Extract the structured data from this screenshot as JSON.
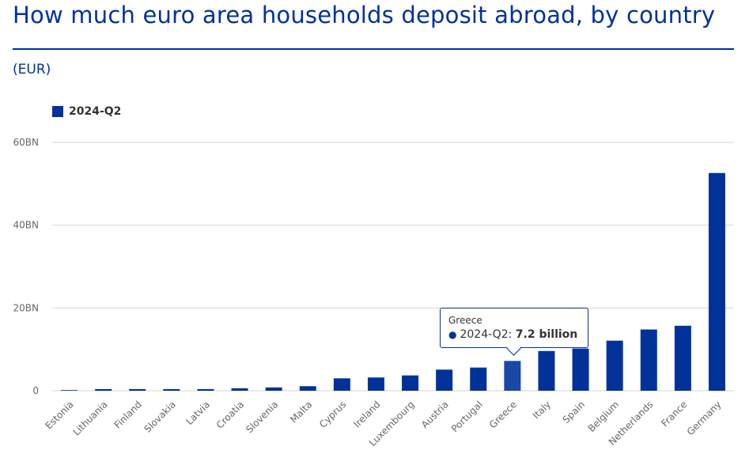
{
  "title": "How much euro area households deposit abroad, by country",
  "unit": "(EUR)",
  "legend": {
    "label": "2024-Q2",
    "color": "#003299"
  },
  "tooltip": {
    "category": "Greece",
    "series": "2024-Q2",
    "separator": ":",
    "value_text": "7.2 billion"
  },
  "colors": {
    "bar": "#003299",
    "bar_highlight": "#1a47a8",
    "grid": "#d6d6d6",
    "axis_text": "#666666"
  },
  "chart_data": {
    "type": "bar",
    "title": "How much euro area households deposit abroad, by country",
    "ylabel": "(EUR)",
    "xlabel": "",
    "ylim": [
      0,
      60
    ],
    "yticks": [
      0,
      20,
      40,
      60
    ],
    "ytick_labels": [
      "0",
      "20BN",
      "40BN",
      "60BN"
    ],
    "grid": true,
    "legend_position": "top-left",
    "series": [
      {
        "name": "2024-Q2",
        "values": [
          0.1,
          0.4,
          0.4,
          0.4,
          0.4,
          0.6,
          0.8,
          1.1,
          3.0,
          3.2,
          3.7,
          5.1,
          5.6,
          7.2,
          9.6,
          10.2,
          12.1,
          14.8,
          15.7,
          52.6
        ]
      }
    ],
    "categories": [
      "Estonia",
      "Lithuania",
      "Finland",
      "Slovakia",
      "Latvia",
      "Croatia",
      "Slovenia",
      "Malta",
      "Cyprus",
      "Ireland",
      "Luxembourg",
      "Austria",
      "Portugal",
      "Greece",
      "Italy",
      "Spain",
      "Belgium",
      "Netherlands",
      "France",
      "Germany"
    ],
    "highlighted_category": "Greece"
  }
}
